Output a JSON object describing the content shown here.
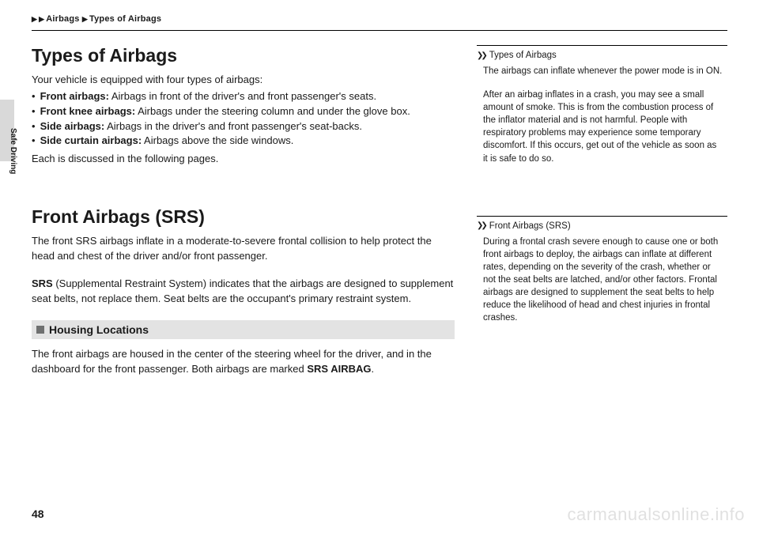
{
  "breadcrumb": {
    "a": "Airbags",
    "b": "Types of Airbags"
  },
  "tab": "Safe Driving",
  "pageNum": "48",
  "watermark": "carmanualsonline.info",
  "section1": {
    "title": "Types of Airbags",
    "intro": "Your vehicle is equipped with four types of airbags:",
    "bullets": [
      {
        "b": "Front airbags:",
        "t": " Airbags in front of the driver's and front passenger's seats."
      },
      {
        "b": "Front knee airbags:",
        "t": " Airbags under the steering column and under the glove box."
      },
      {
        "b": "Side airbags:",
        "t": " Airbags in the driver's and front passenger's seat-backs."
      },
      {
        "b": "Side curtain airbags:",
        "t": " Airbags above the side windows."
      }
    ],
    "outro": "Each is discussed in the following pages."
  },
  "section2": {
    "title": "Front Airbags (SRS)",
    "p1": "The front SRS airbags inflate in a moderate-to-severe frontal collision to help protect the head and chest of the driver and/or front passenger.",
    "p2b": "SRS",
    "p2": " (Supplemental Restraint System) indicates that the airbags are designed to supplement seat belts, not replace them. Seat belts are the occupant's primary restraint system.",
    "sub": "Housing Locations",
    "p3a": "The front airbags are housed in the center of the steering wheel for the driver, and in the dashboard for the front passenger. Both airbags are marked ",
    "p3b": "SRS AIRBAG",
    "p3c": "."
  },
  "note1": {
    "title": "Types of Airbags",
    "p1": "The airbags can inflate whenever the power mode is in ON.",
    "p2": "After an airbag inflates in a crash, you may see a small amount of smoke. This is from the combustion process of the inflator material and is not harmful. People with respiratory problems may experience some temporary discomfort. If this occurs, get out of the vehicle as soon as it is safe to do so."
  },
  "note2": {
    "title": "Front Airbags (SRS)",
    "p1": "During a frontal crash severe enough to cause one or both front airbags to deploy, the airbags can inflate at different rates, depending on the severity of the crash, whether or not the seat belts are latched, and/or other factors. Frontal airbags are designed to supplement the seat belts to help reduce the likelihood of head and chest injuries in frontal crashes."
  }
}
